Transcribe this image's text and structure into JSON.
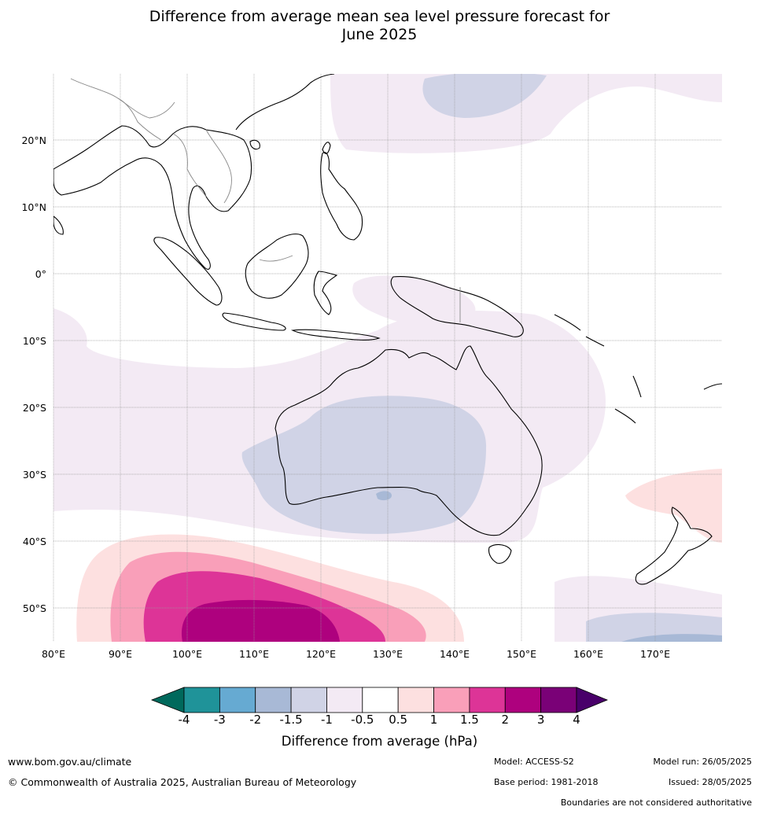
{
  "title": {
    "line1": "Difference from average mean sea level pressure forecast for",
    "line2": "June 2025"
  },
  "map": {
    "lat_labels": [
      "20°N",
      "10°N",
      "0°",
      "10°S",
      "20°S",
      "30°S",
      "40°S",
      "50°S"
    ],
    "lon_labels": [
      "80°E",
      "90°E",
      "100°E",
      "110°E",
      "120°E",
      "130°E",
      "140°E",
      "150°E",
      "160°E",
      "170°E"
    ],
    "land_outline_color": "#000000",
    "border_color": "#888888",
    "grid_color": "#999999"
  },
  "colorbar": {
    "title": "Difference from average (hPa)",
    "ticks": [
      "-4",
      "-3",
      "-2",
      "-1.5",
      "-1",
      "-0.5",
      "0.5",
      "1",
      "1.5",
      "2",
      "3",
      "4"
    ],
    "colors": [
      "#00695c",
      "#1f9399",
      "#66aad2",
      "#a8b9d6",
      "#d0d3e6",
      "#f3eaf4",
      "#ffffff",
      "#fde0e0",
      "#f99fb9",
      "#dd3497",
      "#ae017e",
      "#7a0177",
      "#49006a"
    ]
  },
  "footer": {
    "website": "www.bom.gov.au/climate",
    "copyright": "© Commonwealth of Australia 2025, Australian Bureau of Meteorology",
    "model": "Model: ACCESS-S2",
    "base_period": "Base period: 1981-2018",
    "model_run": "Model run: 26/05/2025",
    "issued": "Issued: 28/05/2025",
    "disclaimer": "Boundaries are not considered authoritative"
  }
}
